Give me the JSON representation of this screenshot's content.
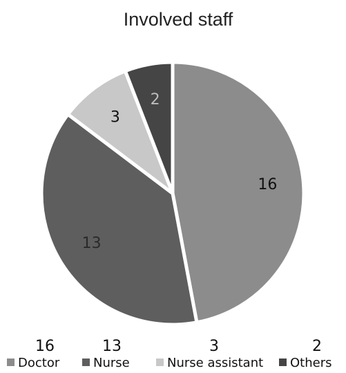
{
  "chart_data": {
    "type": "pie",
    "title": "Involved staff",
    "categories": [
      "Doctor",
      "Nurse",
      "Nurse assistant",
      "Others"
    ],
    "values": [
      16,
      13,
      3,
      2
    ],
    "colors": [
      "#8c8c8c",
      "#5e5e5e",
      "#c8c8c8",
      "#454545"
    ],
    "data_label_colors": [
      "#111111",
      "#2a2a2a",
      "#111111",
      "#bdbdbd"
    ],
    "legend_position": "bottom",
    "legend_shows_counts": true
  }
}
